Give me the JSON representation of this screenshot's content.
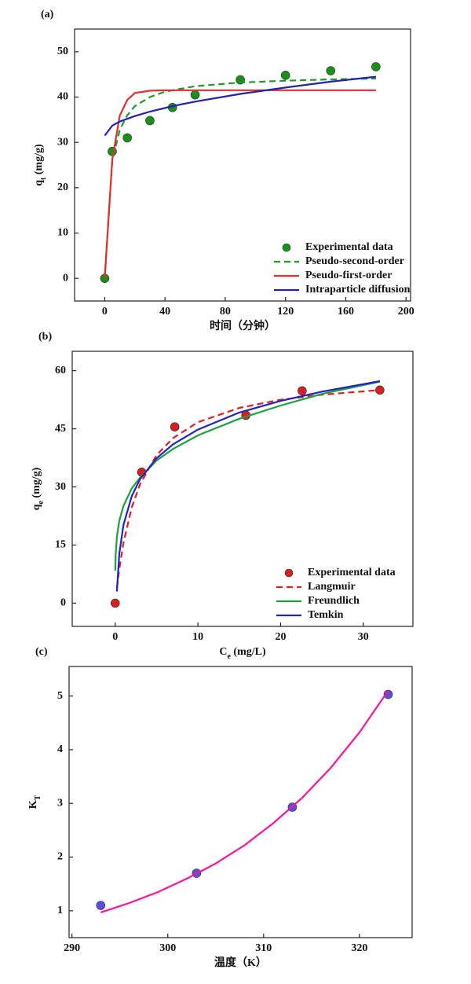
{
  "chart_data": [
    {
      "type": "line",
      "panel_label": "(a)",
      "xlabel": [
        "时间（分钟）"
      ],
      "ylabel": [
        "q",
        "t",
        " (mg/g)"
      ],
      "xlim": [
        -20,
        203
      ],
      "ylim": [
        -5,
        55
      ],
      "xticks": [
        0,
        40,
        80,
        120,
        160,
        200
      ],
      "yticks": [
        0,
        10,
        20,
        30,
        40,
        50
      ],
      "legend": "lower right",
      "series": [
        {
          "name": "Experimental data",
          "type": "scatter",
          "color": "#1a8f1a",
          "x": [
            0,
            5,
            15,
            30,
            45,
            60,
            90,
            120,
            150,
            180
          ],
          "values": [
            0,
            28,
            31,
            34.8,
            37.7,
            40.5,
            43.8,
            44.8,
            45.8,
            46.7
          ]
        },
        {
          "name": "Pseudo-second-order",
          "type": "line",
          "dash": "dashed",
          "color": "#1f9a2a",
          "x": [
            0,
            5,
            10,
            15,
            20,
            30,
            40,
            60,
            90,
            120,
            150,
            180
          ],
          "values": [
            0,
            25.9,
            32.8,
            36,
            38,
            40,
            41.2,
            42.4,
            43.2,
            43.6,
            43.9,
            44.1
          ]
        },
        {
          "name": "Pseudo-first-order",
          "type": "line",
          "dash": "solid",
          "color": "#e03030",
          "x": [
            0,
            5,
            10,
            15,
            20,
            30,
            40,
            60,
            90,
            120,
            150,
            180
          ],
          "values": [
            0,
            26.2,
            35.9,
            39.4,
            40.9,
            41.4,
            41.5,
            41.5,
            41.5,
            41.5,
            41.5,
            41.5
          ]
        },
        {
          "name": "Intraparticle diffusion",
          "type": "line",
          "dash": "solid",
          "color": "#2222b0",
          "x": [
            0,
            5,
            10,
            20,
            30,
            45,
            60,
            90,
            120,
            150,
            180
          ],
          "values": [
            31.5,
            33.7,
            34.6,
            35.8,
            36.8,
            38,
            39,
            40.7,
            42.1,
            43.4,
            44.5
          ]
        }
      ]
    },
    {
      "type": "line",
      "panel_label": "(b)",
      "xlabel": [
        "C",
        "e",
        " (mg/L)"
      ],
      "ylabel": [
        "q",
        "e",
        " (mg/g)"
      ],
      "xlim": [
        -5.2,
        36
      ],
      "ylim": [
        -6,
        65
      ],
      "xticks": [
        0,
        10,
        20,
        30
      ],
      "yticks": [
        0,
        15,
        30,
        45,
        60
      ],
      "legend": "lower right",
      "series": [
        {
          "name": "Experimental data",
          "type": "scatter",
          "color": "#d42020",
          "x": [
            0,
            3.2,
            7.2,
            15.8,
            22.6,
            32
          ],
          "values": [
            0,
            33.8,
            45.5,
            48.5,
            54.8,
            55
          ]
        },
        {
          "name": "Langmuir",
          "type": "line",
          "dash": "dashed",
          "color": "#e02020",
          "x": [
            0.2,
            0.5,
            1,
            2,
            3,
            5,
            7,
            10,
            15,
            20,
            25,
            32
          ],
          "values": [
            3.9,
            8.9,
            15.6,
            24.7,
            30.7,
            38.2,
            42.6,
            46.7,
            50.4,
            52.5,
            53.8,
            55
          ]
        },
        {
          "name": "Freundlich",
          "type": "line",
          "dash": "solid",
          "color": "#1fa040",
          "x": [
            0.01,
            0.05,
            0.2,
            0.5,
            1,
            2,
            3,
            5,
            7,
            10,
            15,
            20,
            25,
            32
          ],
          "values": [
            8.4,
            12.3,
            17.1,
            21.3,
            25.1,
            29.6,
            32.4,
            36.8,
            39.8,
            43.3,
            47.6,
            51,
            54,
            57.2
          ]
        },
        {
          "name": "Temkin",
          "type": "line",
          "dash": "solid",
          "color": "#2222c0",
          "x": [
            0.2,
            0.5,
            1,
            2,
            3,
            5,
            7,
            10,
            15,
            20,
            25,
            32
          ],
          "values": [
            3,
            12.8,
            20.2,
            27.6,
            32,
            37.4,
            41,
            44.8,
            49.2,
            52.2,
            54.6,
            57.3
          ]
        }
      ]
    },
    {
      "type": "line",
      "panel_label": "(c)",
      "xlabel": [
        "温度（K）"
      ],
      "ylabel": [
        "K",
        "T"
      ],
      "xlim": [
        289.7,
        325.5
      ],
      "ylim": [
        0.5,
        5.55
      ],
      "xticks": [
        290,
        300,
        310,
        320
      ],
      "yticks": [
        1,
        2,
        3,
        4,
        5
      ],
      "series": [
        {
          "type": "scatter",
          "color": "#5a4ee0",
          "x": [
            293,
            303,
            313,
            323
          ],
          "values": [
            1.1,
            1.7,
            2.93,
            5.03
          ]
        },
        {
          "type": "line",
          "dash": "solid",
          "color": "#ff1493",
          "x": [
            293,
            296,
            299,
            302,
            305,
            308,
            311,
            314,
            317,
            320,
            323
          ],
          "values": [
            0.97,
            1.145,
            1.35,
            1.6,
            1.88,
            2.22,
            2.63,
            3.1,
            3.66,
            4.32,
            5.1
          ]
        }
      ]
    }
  ]
}
